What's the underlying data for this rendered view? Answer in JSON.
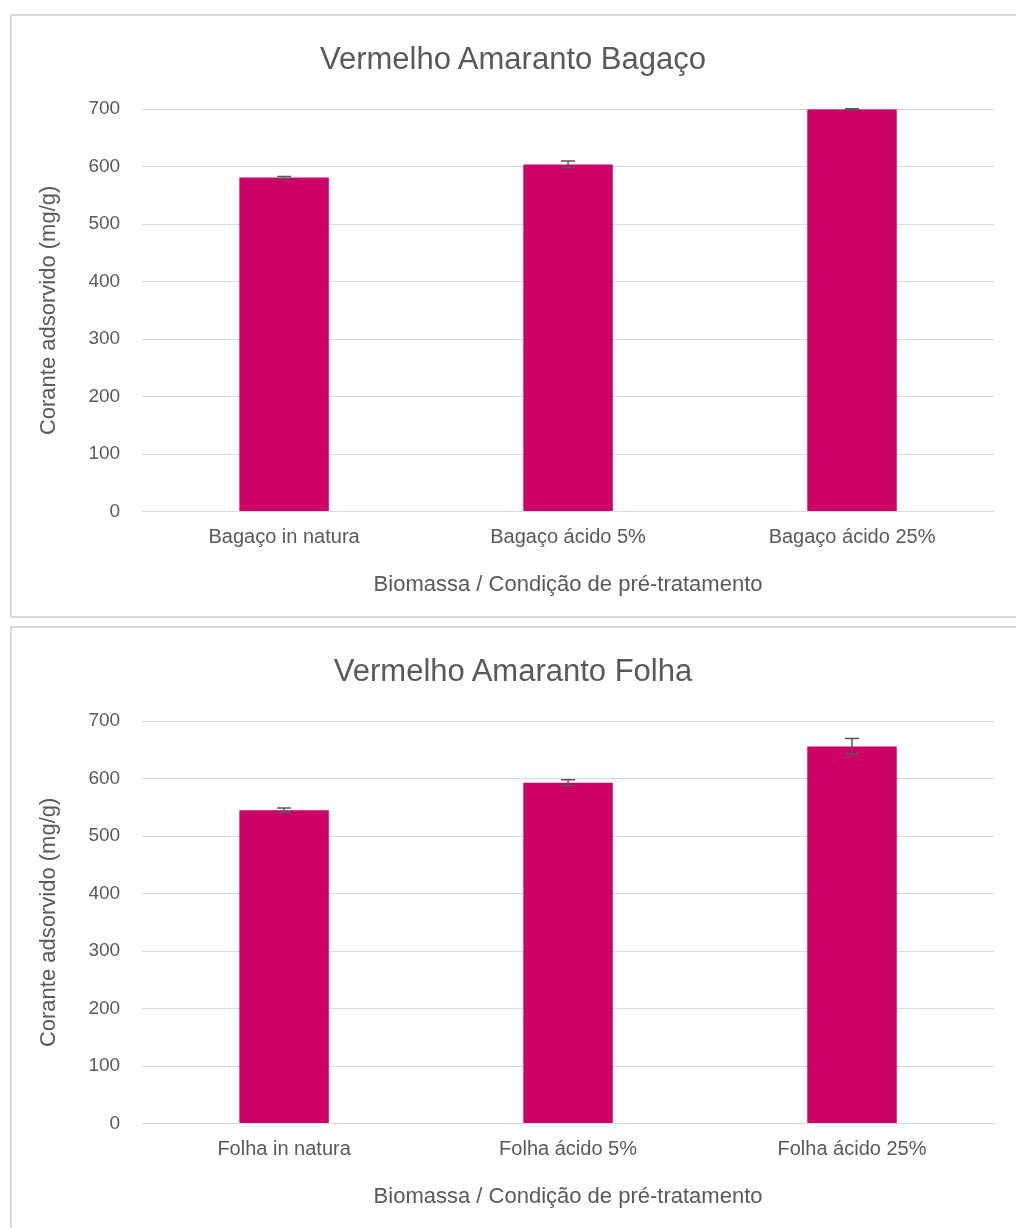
{
  "chart_data": [
    {
      "type": "bar",
      "title": "Vermelho Amaranto Bagaço",
      "xlabel": "Biomassa / Condição de pré-tratamento",
      "ylabel": "Corante adsorvido (mg/g)",
      "categories": [
        "Bagaço in natura",
        "Bagaço ácido 5%",
        "Bagaço ácido 25%"
      ],
      "values": [
        581,
        604,
        700
      ],
      "errors": [
        2,
        6,
        1
      ],
      "color": "#cc0066",
      "ylim": [
        0,
        700
      ],
      "yticks": [
        0,
        100,
        200,
        300,
        400,
        500,
        600,
        700
      ],
      "grid": "y",
      "legend": false
    },
    {
      "type": "bar",
      "title": "Vermelho Amaranto Folha",
      "xlabel": "Biomassa / Condição de pré-tratamento",
      "ylabel": "Corante adsorvido (mg/g)",
      "categories": [
        "Folha in natura",
        "Folha ácido 5%",
        "Folha ácido 25%"
      ],
      "values": [
        545,
        593,
        656
      ],
      "errors": [
        4,
        5,
        14
      ],
      "color": "#cc0066",
      "ylim": [
        0,
        700
      ],
      "yticks": [
        0,
        100,
        200,
        300,
        400,
        500,
        600,
        700
      ],
      "grid": "y",
      "legend": false
    }
  ]
}
